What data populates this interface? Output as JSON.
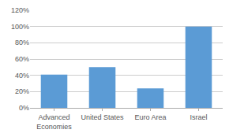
{
  "chart_data": {
    "type": "bar",
    "categories": [
      "Advanced\nEconomies",
      "United States",
      "Euro Area",
      "Israel"
    ],
    "values": [
      41,
      50,
      24,
      100
    ],
    "color": "#5b9bd5",
    "ylim": [
      0,
      120
    ],
    "yticks": [
      {
        "value": 0,
        "label": "0%"
      },
      {
        "value": 20,
        "label": "20%"
      },
      {
        "value": 40,
        "label": "40%"
      },
      {
        "value": 60,
        "label": "60%"
      },
      {
        "value": 80,
        "label": "80%"
      },
      {
        "value": 100,
        "label": "100%"
      },
      {
        "value": 120,
        "label": "120%"
      }
    ],
    "grid": true
  }
}
